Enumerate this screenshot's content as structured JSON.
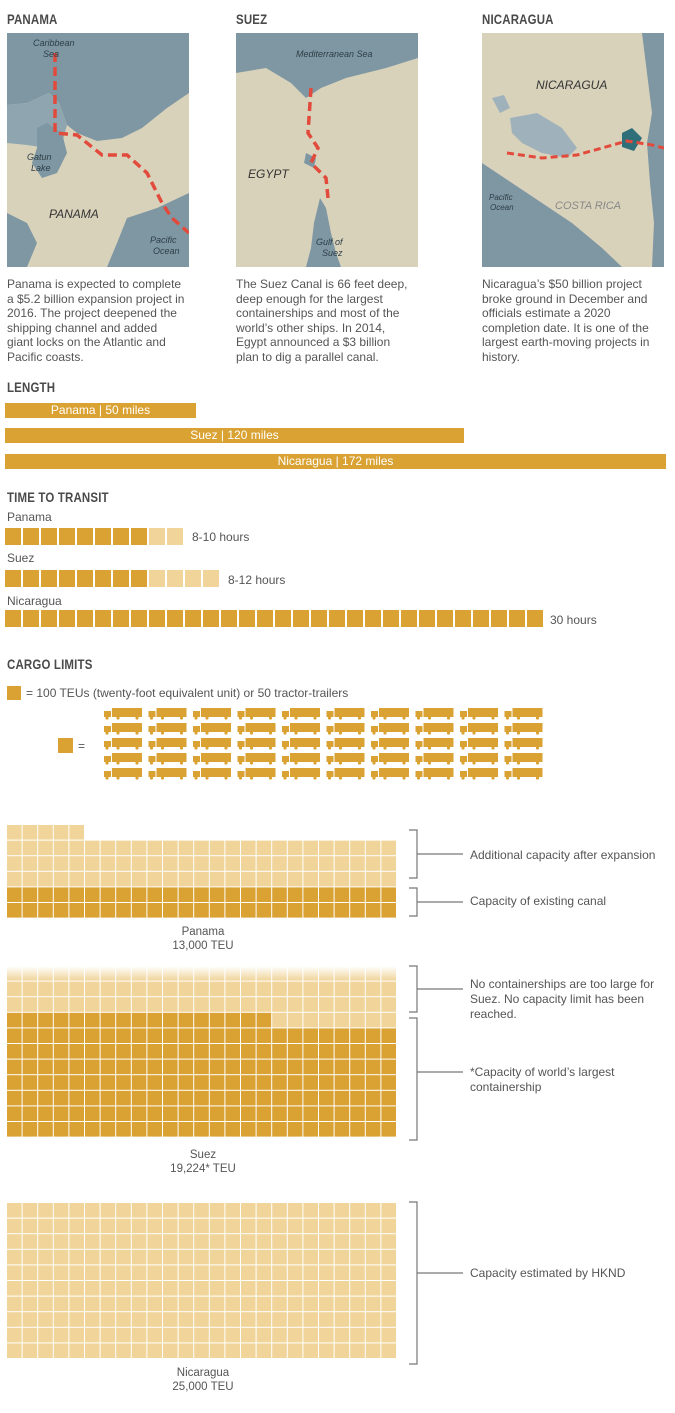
{
  "colors": {
    "gold": "#d9a233",
    "light": "#f0d49a",
    "lighter": "#f7e6c2",
    "land": "#d8d2bb",
    "sea": "#7f97a3",
    "route": "#e24a3b",
    "lake": "#2f6f7a"
  },
  "canals": [
    {
      "title": "PANAMA",
      "map": {
        "sea1": "Caribbean",
        "sea1b": "Sea",
        "lake1": "Gatun",
        "lake1b": "Lake",
        "country": "PANAMA",
        "sea2": "Pacific",
        "sea2b": "Ocean"
      },
      "desc": [
        "Panama is expected to complete",
        "a $5.2 billion expansion project in",
        "2016. The project deepened the",
        "shipping channel and added",
        "giant locks on the Atlantic and",
        "Pacific coasts."
      ]
    },
    {
      "title": "SUEZ",
      "map": {
        "sea1": "Mediterranean Sea",
        "country": "EGYPT",
        "gulf1": "Gulf of",
        "gulf2": "Suez"
      },
      "desc": [
        "The Suez Canal is 66 feet deep,",
        "deep enough for the largest",
        "containerships and most of the",
        "world’s other ships. In 2014,",
        "Egypt announced a $3 billion",
        "plan to dig a parallel canal."
      ]
    },
    {
      "title": "NICARAGUA",
      "map": {
        "country": "NICARAGUA",
        "sea2": "Pacific",
        "sea2b": "Ocean",
        "country2": "COSTA RICA"
      },
      "desc": [
        "Nicaragua’s $50 billion project",
        "broke ground in December and",
        "officials estimate a 2020",
        "completion date. It is one of the",
        "largest earth-moving projects in",
        "history."
      ]
    }
  ],
  "length": {
    "title": "LENGTH",
    "bars": [
      {
        "label": "Panama | 50 miles",
        "miles": 50
      },
      {
        "label": "Suez | 120 miles",
        "miles": 120
      },
      {
        "label": "Nicaragua | 172 miles",
        "miles": 172
      }
    ]
  },
  "transit": {
    "title": "TIME TO TRANSIT",
    "rows": [
      {
        "name": "Panama",
        "min_hours": 8,
        "max_hours": 10,
        "label": "8-10 hours"
      },
      {
        "name": "Suez",
        "min_hours": 8,
        "max_hours": 12,
        "label": "8-12 hours"
      },
      {
        "name": "Nicaragua",
        "min_hours": 30,
        "max_hours": 30,
        "label": "30 hours"
      }
    ]
  },
  "cargo": {
    "title": "CARGO LIMITS",
    "legend": "= 100 TEUs (twenty-foot equivalent unit) or 50 tractor-trailers",
    "equals": "=",
    "trucks_per_square": 50,
    "canals": [
      {
        "name": "Panama",
        "value_label": "13,000 TEU",
        "existing_squares": 50,
        "total_squares": 130,
        "notes": [
          "Additional capacity after expansion",
          "Capacity of existing canal"
        ]
      },
      {
        "name": "Suez",
        "value_label": "19,224* TEU",
        "largest_ship_squares": 192,
        "no_limit": true,
        "notes": [
          "No containerships are too large for Suez. No capacity limit has been reached.",
          "*Capacity of world’s largest containership"
        ]
      },
      {
        "name": "Nicaragua",
        "value_label": "25,000 TEU",
        "total_squares": 250,
        "notes": [
          "Capacity estimated by HKND"
        ]
      }
    ]
  }
}
